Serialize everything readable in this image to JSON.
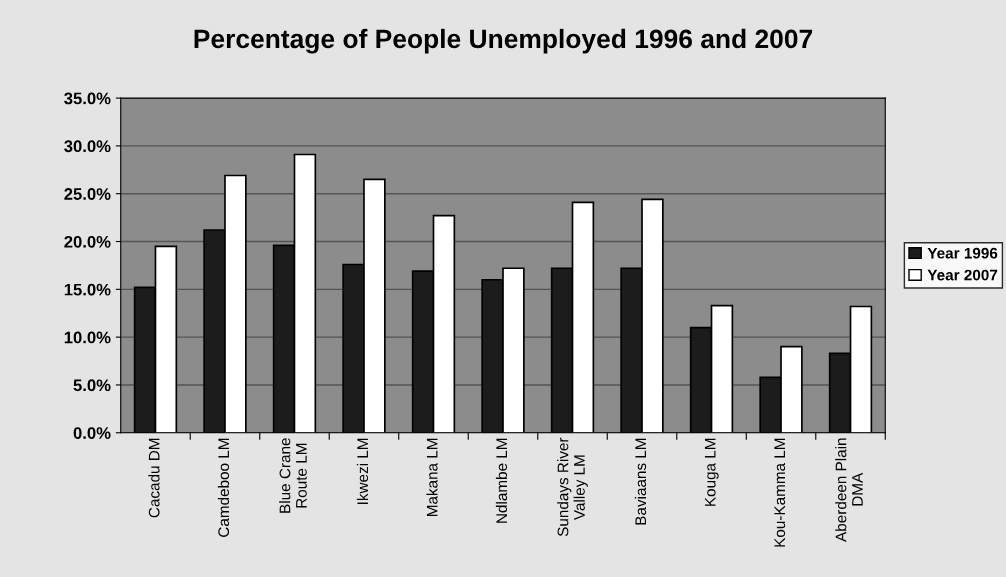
{
  "chart_data": {
    "type": "bar",
    "title": "Percentage of People Unemployed 1996 and 2007",
    "categories": [
      "Cacadu DM",
      "Camdeboo LM",
      "Blue Crane\nRoute LM",
      "Ikwezi LM",
      "Makana LM",
      "Ndlambe LM",
      "Sundays River\nValley LM",
      "Baviaans LM",
      "Kouga LM",
      "Kou-Kamma LM",
      "Aberdeen Plain\nDMA"
    ],
    "series": [
      {
        "name": "Year 1996",
        "color": "#1c1c1c",
        "values": [
          15.2,
          21.2,
          19.6,
          17.6,
          16.9,
          16.0,
          17.2,
          17.2,
          11.0,
          5.8,
          8.3
        ]
      },
      {
        "name": "Year 2007",
        "color": "#ffffff",
        "values": [
          19.5,
          26.9,
          29.1,
          26.5,
          22.7,
          17.2,
          24.1,
          24.4,
          13.3,
          9.0,
          13.2
        ]
      }
    ],
    "ylim": [
      0,
      35
    ],
    "yticks": [
      {
        "value": 0,
        "label": "0.0%"
      },
      {
        "value": 5,
        "label": "5.0%"
      },
      {
        "value": 10,
        "label": "10.0%"
      },
      {
        "value": 15,
        "label": "15.0%"
      },
      {
        "value": 20,
        "label": "20.0%"
      },
      {
        "value": 25,
        "label": "25.0%"
      },
      {
        "value": 30,
        "label": "30.0%"
      },
      {
        "value": 35,
        "label": "35.0%"
      }
    ],
    "grid": "y",
    "legend": "right"
  }
}
